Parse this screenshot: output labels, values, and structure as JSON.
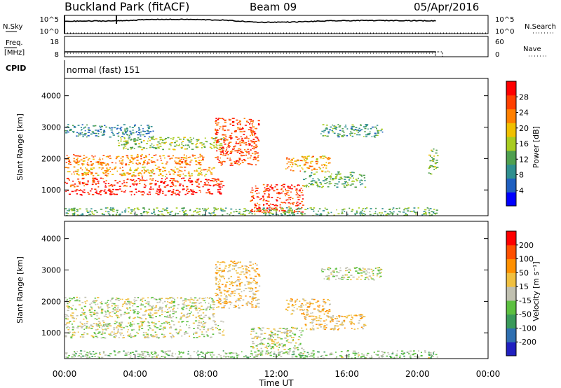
{
  "header": {
    "title": "Buckland Park (fitACF)",
    "beam": "Beam 09",
    "date": "05/Apr/2016"
  },
  "noise_panel": {
    "left_label": "N.Sky",
    "right_label": "N.Search",
    "left_ticks": [
      "10^5",
      "10^0"
    ],
    "right_ticks": [
      "10^5",
      "10^0"
    ]
  },
  "freq_panel": {
    "left_label_1": "Freq.",
    "left_label_2": "[MHz]",
    "right_label": "Nave",
    "left_ticks": [
      "18",
      "8"
    ],
    "right_ticks": [
      "60",
      "0"
    ]
  },
  "cpid_panel": {
    "label": "CPID",
    "mode_text": "normal (fast) 151"
  },
  "x_axis": {
    "ticks": [
      "00:00",
      "04:00",
      "08:00",
      "12:00",
      "16:00",
      "20:00",
      "00:00"
    ],
    "label": "Time UT"
  },
  "power_panel": {
    "ylabel": "Slant Range [km]",
    "y_ticks": [
      "1000",
      "2000",
      "3000",
      "4000"
    ],
    "colorbar_label": "Power [dB]",
    "colorbar_ticks": [
      "28",
      "24",
      "20",
      "16",
      "12",
      "8",
      "4"
    ],
    "colors": [
      "#0000ff",
      "#1f5fc0",
      "#2f8f8f",
      "#4fa04f",
      "#a8cc20",
      "#f0c000",
      "#ff8000",
      "#ff4000",
      "#ff0000"
    ]
  },
  "velocity_panel": {
    "ylabel": "Slant Range [km]",
    "y_ticks": [
      "1000",
      "2000",
      "3000",
      "4000"
    ],
    "colorbar_label": "Velocity [m s⁻¹]",
    "colorbar_ticks": [
      "200",
      "100",
      "50",
      "15",
      "-15",
      "-50",
      "-100",
      "-200"
    ],
    "colors": [
      "#2020c0",
      "#2f6fb0",
      "#3a9a5a",
      "#5cc040",
      "#c0c0b0",
      "#f0c040",
      "#ff9000",
      "#ff5000",
      "#ff0000"
    ]
  },
  "chart_data": [
    {
      "type": "heatmap",
      "title": "Power [dB]",
      "xlabel": "Time UT",
      "ylabel": "Slant Range [km]",
      "xlim": [
        0,
        24
      ],
      "ylim": [
        180,
        4550
      ],
      "zlim": [
        0,
        30
      ],
      "scatter_bands": [
        {
          "t_start": 0.0,
          "t_end": 9.0,
          "range_start": 850,
          "range_end": 1050,
          "value": 28
        },
        {
          "t_start": 0.0,
          "t_end": 9.0,
          "range_start": 1100,
          "range_end": 1400,
          "value": 26
        },
        {
          "t_start": 0.0,
          "t_end": 8.5,
          "range_start": 1450,
          "range_end": 1750,
          "value": 20
        },
        {
          "t_start": 0.0,
          "t_end": 8.0,
          "range_start": 1800,
          "range_end": 2150,
          "value": 22
        },
        {
          "t_start": 3.0,
          "t_end": 9.0,
          "range_start": 2300,
          "range_end": 2700,
          "value": 14
        },
        {
          "t_start": 0.0,
          "t_end": 5.0,
          "range_start": 2700,
          "range_end": 3100,
          "value": 8
        },
        {
          "t_start": 8.5,
          "t_end": 11.0,
          "range_start": 1800,
          "range_end": 3300,
          "value": 25
        },
        {
          "t_start": 10.5,
          "t_end": 13.5,
          "range_start": 300,
          "range_end": 1200,
          "value": 26
        },
        {
          "t_start": 12.5,
          "t_end": 15.0,
          "range_start": 1600,
          "range_end": 2100,
          "value": 20
        },
        {
          "t_start": 13.5,
          "t_end": 17.0,
          "range_start": 1100,
          "range_end": 1600,
          "value": 12
        },
        {
          "t_start": 14.5,
          "t_end": 18.0,
          "range_start": 2700,
          "range_end": 3100,
          "value": 10
        },
        {
          "t_start": 0.0,
          "t_end": 21.1,
          "range_start": 200,
          "range_end": 450,
          "value": 12
        },
        {
          "t_start": 20.6,
          "t_end": 21.1,
          "range_start": 1500,
          "range_end": 2400,
          "value": 14
        }
      ]
    },
    {
      "type": "heatmap",
      "title": "Velocity [m s⁻¹]",
      "xlabel": "Time UT",
      "ylabel": "Slant Range [km]",
      "xlim": [
        0,
        24
      ],
      "ylim": [
        180,
        4550
      ],
      "zlim": [
        -250,
        250
      ],
      "scatter_bands": [
        {
          "t_start": 0.0,
          "t_end": 9.0,
          "range_start": 850,
          "range_end": 1050,
          "value": 0
        },
        {
          "t_start": 0.0,
          "t_end": 9.0,
          "range_start": 1100,
          "range_end": 1400,
          "value": 0
        },
        {
          "t_start": 0.0,
          "t_end": 8.5,
          "range_start": 1450,
          "range_end": 2150,
          "value": 0
        },
        {
          "t_start": 8.5,
          "t_end": 11.0,
          "range_start": 1800,
          "range_end": 3300,
          "value": 60
        },
        {
          "t_start": 10.5,
          "t_end": 13.5,
          "range_start": 300,
          "range_end": 1200,
          "value": 0
        },
        {
          "t_start": 12.5,
          "t_end": 15.0,
          "range_start": 1600,
          "range_end": 2100,
          "value": 60
        },
        {
          "t_start": 13.5,
          "t_end": 17.0,
          "range_start": 1100,
          "range_end": 1600,
          "value": 60
        },
        {
          "t_start": 14.5,
          "t_end": 18.0,
          "range_start": 2700,
          "range_end": 3100,
          "value": 0
        },
        {
          "t_start": 0.0,
          "t_end": 21.1,
          "range_start": 200,
          "range_end": 450,
          "value": -40
        }
      ]
    },
    {
      "type": "line",
      "title": "N.Sky",
      "x": [
        0,
        3,
        5,
        7,
        9,
        11,
        13,
        15,
        17,
        19,
        21
      ],
      "y_log10": [
        3.4,
        3.5,
        3.9,
        3.9,
        3.7,
        3.1,
        3.2,
        3.5,
        3.6,
        3.6,
        3.5
      ]
    },
    {
      "type": "line",
      "title": "Freq.",
      "x": [
        0,
        21.1
      ],
      "y": [
        9.5,
        9.5
      ]
    }
  ]
}
